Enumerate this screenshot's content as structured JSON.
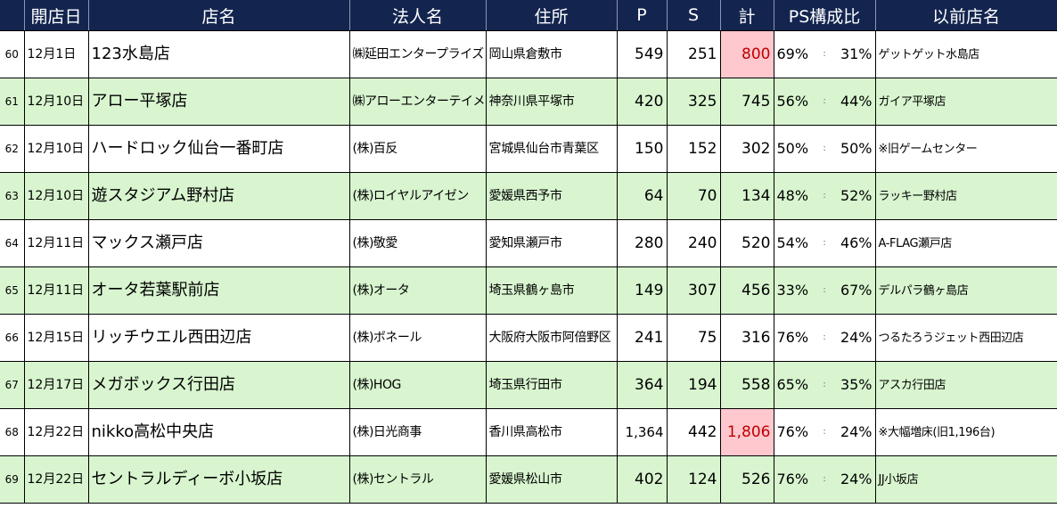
{
  "headers": {
    "no": "",
    "date": "開店日",
    "name": "店名",
    "corp": "法人名",
    "address": "住所",
    "p": "P",
    "s": "S",
    "total": "計",
    "ps_ratio": "PS構成比",
    "prev_name": "以前店名"
  },
  "rows": [
    {
      "no": "60",
      "date": "12月1日",
      "name": "123水島店",
      "corp": "㈱延田エンタープライズ",
      "address": "岡山県倉敷市",
      "p": "549",
      "s": "251",
      "total": "800",
      "p_pct": "69%",
      "sep": ":",
      "s_pct": "31%",
      "prev": "ゲットゲット水島店",
      "highlight": true
    },
    {
      "no": "61",
      "date": "12月10日",
      "name": "アロー平塚店",
      "corp": "㈱アローエンターテイメント",
      "address": "神奈川県平塚市",
      "p": "420",
      "s": "325",
      "total": "745",
      "p_pct": "56%",
      "sep": ":",
      "s_pct": "44%",
      "prev": "ガイア平塚店",
      "highlight": false
    },
    {
      "no": "62",
      "date": "12月10日",
      "name": "ハードロック仙台一番町店",
      "corp": "(株)百反",
      "address": "宮城県仙台市青葉区",
      "p": "150",
      "s": "152",
      "total": "302",
      "p_pct": "50%",
      "sep": ":",
      "s_pct": "50%",
      "prev": "※旧ゲームセンター",
      "highlight": false
    },
    {
      "no": "63",
      "date": "12月10日",
      "name": "遊スタジアム野村店",
      "corp": "(株)ロイヤルアイゼン",
      "address": "愛媛県西予市",
      "p": "64",
      "s": "70",
      "total": "134",
      "p_pct": "48%",
      "sep": ":",
      "s_pct": "52%",
      "prev": "ラッキー野村店",
      "highlight": false
    },
    {
      "no": "64",
      "date": "12月11日",
      "name": "マックス瀬戸店",
      "corp": "(株)敬愛",
      "address": "愛知県瀬戸市",
      "p": "280",
      "s": "240",
      "total": "520",
      "p_pct": "54%",
      "sep": ":",
      "s_pct": "46%",
      "prev": "A-FLAG瀬戸店",
      "highlight": false
    },
    {
      "no": "65",
      "date": "12月11日",
      "name": "オータ若葉駅前店",
      "corp": "(株)オータ",
      "address": "埼玉県鶴ヶ島市",
      "p": "149",
      "s": "307",
      "total": "456",
      "p_pct": "33%",
      "sep": ":",
      "s_pct": "67%",
      "prev": "デルパラ鶴ヶ島店",
      "highlight": false
    },
    {
      "no": "66",
      "date": "12月15日",
      "name": "リッチウエル西田辺店",
      "corp": "(株)ボネール",
      "address": "大阪府大阪市阿倍野区",
      "p": "241",
      "s": "75",
      "total": "316",
      "p_pct": "76%",
      "sep": ":",
      "s_pct": "24%",
      "prev": "つるたろうジェット西田辺店",
      "highlight": false
    },
    {
      "no": "67",
      "date": "12月17日",
      "name": "メガボックス行田店",
      "corp": "(株)HOG",
      "address": "埼玉県行田市",
      "p": "364",
      "s": "194",
      "total": "558",
      "p_pct": "65%",
      "sep": ":",
      "s_pct": "35%",
      "prev": "アスカ行田店",
      "highlight": false
    },
    {
      "no": "68",
      "date": "12月22日",
      "name": "nikko高松中央店",
      "corp": "(株)日光商事",
      "address": "香川県高松市",
      "p": "1,364",
      "s": "442",
      "total": "1,806",
      "p_pct": "76%",
      "sep": ":",
      "s_pct": "24%",
      "prev": "※大幅増床(旧1,196台)",
      "highlight": true
    },
    {
      "no": "69",
      "date": "12月22日",
      "name": "セントラルディーボ小坂店",
      "corp": "(株)セントラル",
      "address": "愛媛県松山市",
      "p": "402",
      "s": "124",
      "total": "526",
      "p_pct": "76%",
      "sep": ":",
      "s_pct": "24%",
      "prev": "JJ小坂店",
      "highlight": false
    }
  ],
  "colors": {
    "header_bg": "#13254f",
    "row_green": "#d8f5cf",
    "highlight_bg": "#ffc7ce",
    "highlight_text": "#c00000"
  }
}
